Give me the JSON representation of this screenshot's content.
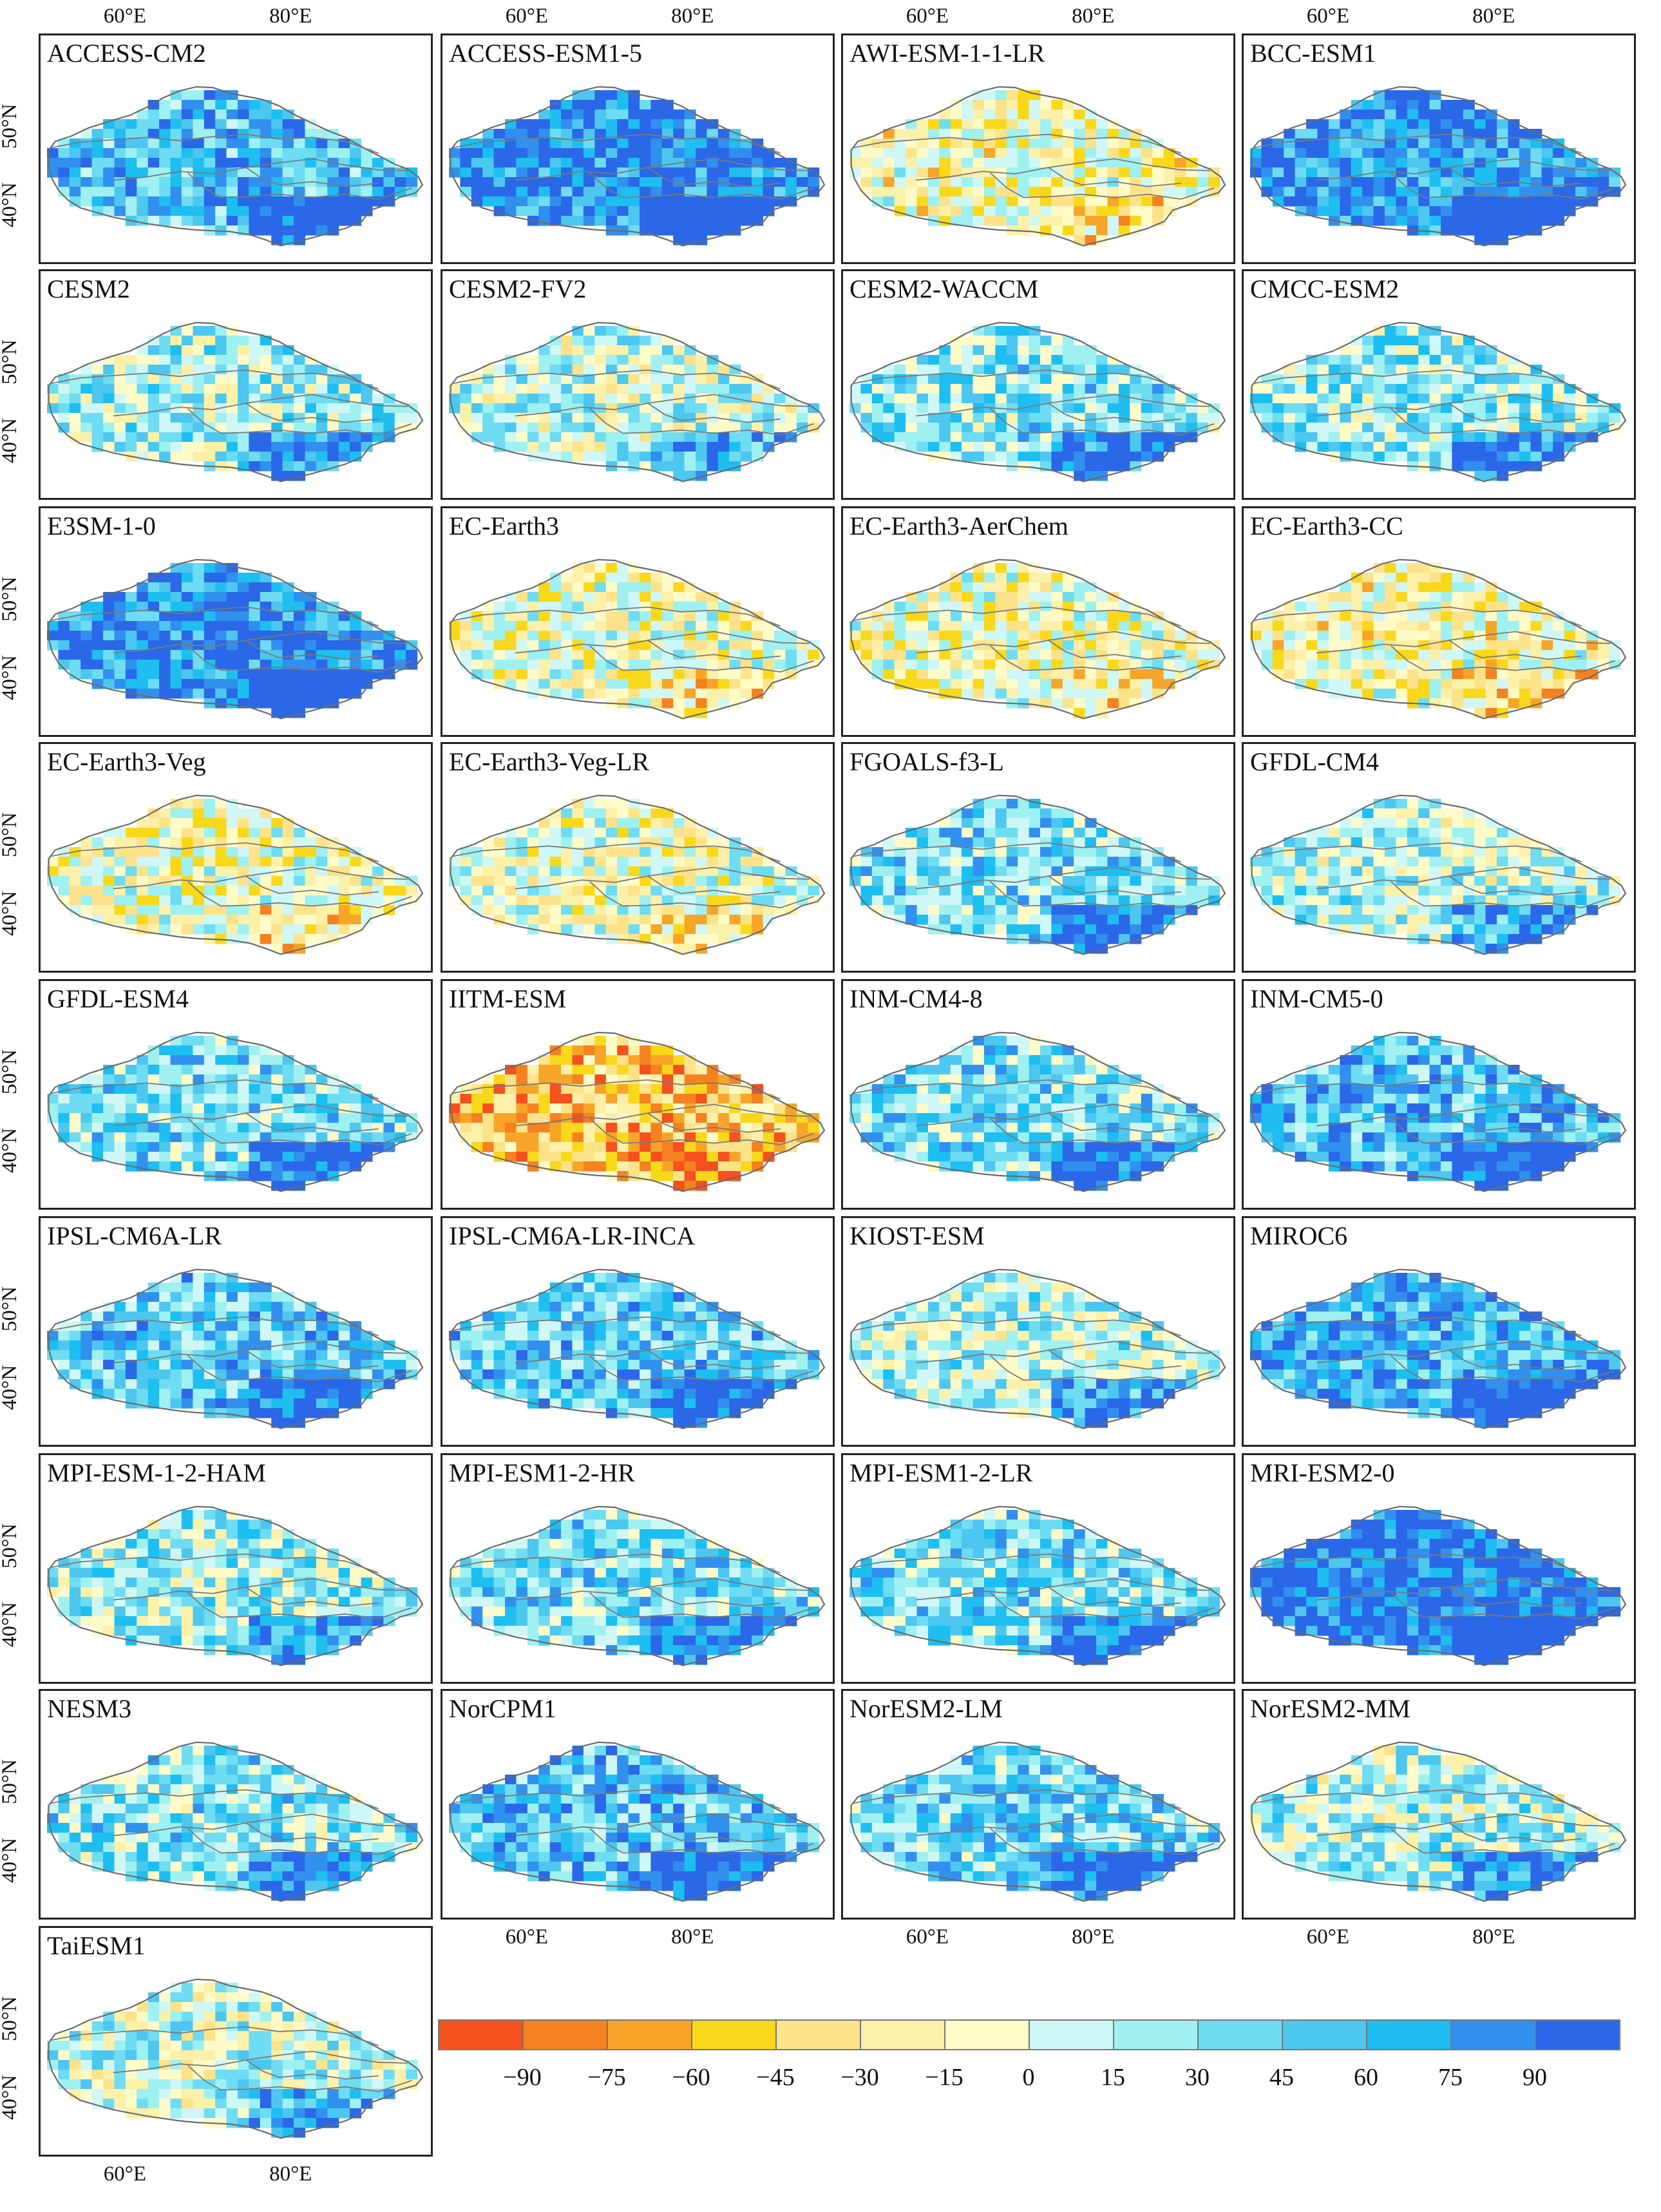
{
  "axes": {
    "lon_ticks": [
      "60°E",
      "80°E"
    ],
    "lat_ticks": [
      "50°N",
      "40°N"
    ]
  },
  "panels": [
    {
      "name": "ACCESS-CM2",
      "bias": 0.55
    },
    {
      "name": "ACCESS-ESM1-5",
      "bias": 0.8
    },
    {
      "name": "AWI-ESM-1-1-LR",
      "bias": -0.15
    },
    {
      "name": "BCC-ESM1",
      "bias": 0.75
    },
    {
      "name": "CESM2",
      "bias": 0.2
    },
    {
      "name": "CESM2-FV2",
      "bias": 0.1
    },
    {
      "name": "CESM2-WACCM",
      "bias": 0.3
    },
    {
      "name": "CMCC-ESM2",
      "bias": 0.25
    },
    {
      "name": "E3SM-1-0",
      "bias": 0.75
    },
    {
      "name": "EC-Earth3",
      "bias": -0.1
    },
    {
      "name": "EC-Earth3-AerChem",
      "bias": -0.1
    },
    {
      "name": "EC-Earth3-CC",
      "bias": -0.15
    },
    {
      "name": "EC-Earth3-Veg",
      "bias": -0.1
    },
    {
      "name": "EC-Earth3-Veg-LR",
      "bias": -0.05
    },
    {
      "name": "FGOALS-f3-L",
      "bias": 0.35
    },
    {
      "name": "GFDL-CM4",
      "bias": 0.15
    },
    {
      "name": "GFDL-ESM4",
      "bias": 0.35
    },
    {
      "name": "IITM-ESM",
      "bias": -0.5
    },
    {
      "name": "INM-CM4-8",
      "bias": 0.35
    },
    {
      "name": "INM-CM5-0",
      "bias": 0.55
    },
    {
      "name": "IPSL-CM6A-LR",
      "bias": 0.45
    },
    {
      "name": "IPSL-CM6A-LR-INCA",
      "bias": 0.45
    },
    {
      "name": "KIOST-ESM",
      "bias": 0.15
    },
    {
      "name": "MIROC6",
      "bias": 0.6
    },
    {
      "name": "MPI-ESM-1-2-HAM",
      "bias": 0.2
    },
    {
      "name": "MPI-ESM1-2-HR",
      "bias": 0.35
    },
    {
      "name": "MPI-ESM1-2-LR",
      "bias": 0.35
    },
    {
      "name": "MRI-ESM2-0",
      "bias": 0.9
    },
    {
      "name": "NESM3",
      "bias": 0.3
    },
    {
      "name": "NorCPM1",
      "bias": 0.5
    },
    {
      "name": "NorESM2-LM",
      "bias": 0.4
    },
    {
      "name": "NorESM2-MM",
      "bias": 0.15
    },
    {
      "name": "TaiESM1",
      "bias": 0.1
    }
  ],
  "legend": {
    "colors": [
      "#f4511e",
      "#f58220",
      "#f7a528",
      "#f9d81b",
      "#fce38a",
      "#fdf0a9",
      "#fffbc8",
      "#cff7f5",
      "#9ff0f0",
      "#6edcf2",
      "#4dc7ef",
      "#1ebef0",
      "#3190ee",
      "#2a68e8"
    ],
    "labels": [
      "−90",
      "−75",
      "−60",
      "−45",
      "−30",
      "−15",
      "0",
      "15",
      "30",
      "45",
      "60",
      "75",
      "90"
    ]
  }
}
